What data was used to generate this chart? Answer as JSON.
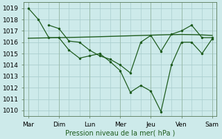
{
  "background_color": "#cdeaea",
  "grid_color": "#aacece",
  "line_color": "#1e5c1e",
  "x_labels": [
    "Mar",
    "Dim",
    "Lun",
    "Mer",
    "Jeu",
    "Ven",
    "Sam"
  ],
  "xlabel": "Pression niveau de la mer( hPa )",
  "ylim": [
    1009.5,
    1019.5
  ],
  "yticks": [
    1010,
    1011,
    1012,
    1013,
    1014,
    1015,
    1016,
    1017,
    1018,
    1019
  ],
  "line1_x": [
    0.0,
    0.33,
    0.67,
    1.0,
    1.33,
    1.67,
    2.0,
    2.33,
    2.67,
    3.0,
    3.33,
    3.67,
    4.0,
    4.33,
    4.67,
    5.0,
    5.33,
    5.67,
    6.0
  ],
  "line1_y": [
    1019.0,
    1018.0,
    1016.4,
    1016.4,
    1015.3,
    1014.6,
    1014.8,
    1015.0,
    1014.3,
    1013.5,
    1011.6,
    1012.2,
    1011.7,
    1009.9,
    1014.0,
    1016.0,
    1016.0,
    1015.0,
    1016.3
  ],
  "line2_x": [
    0.67,
    1.0,
    1.33,
    1.67,
    2.0,
    2.33,
    2.67,
    3.0,
    3.33,
    3.67,
    4.0,
    4.33,
    4.67,
    5.0,
    5.33,
    5.67,
    6.0
  ],
  "line2_y": [
    1017.5,
    1017.2,
    1016.1,
    1016.0,
    1015.3,
    1014.8,
    1014.5,
    1014.0,
    1013.3,
    1016.0,
    1016.6,
    1015.2,
    1016.7,
    1017.0,
    1017.5,
    1016.4,
    1016.4
  ],
  "trend_x": [
    0.0,
    0.5,
    1.0,
    1.5,
    2.0,
    2.5,
    3.0,
    3.5,
    4.0,
    4.5,
    5.0,
    5.5,
    6.0
  ],
  "trend_y": [
    1016.35,
    1016.38,
    1016.4,
    1016.43,
    1016.46,
    1016.5,
    1016.54,
    1016.58,
    1016.62,
    1016.66,
    1016.68,
    1016.66,
    1016.6
  ],
  "x_tick_positions": [
    0,
    1,
    2,
    3,
    4,
    5,
    6
  ],
  "x_minor_positions": [
    0.33,
    0.67,
    1.33,
    1.67,
    2.33,
    2.67,
    3.33,
    3.67,
    4.33,
    4.67,
    5.33,
    5.67
  ],
  "xlabel_fontsize": 7.0,
  "tick_fontsize": 6.5
}
